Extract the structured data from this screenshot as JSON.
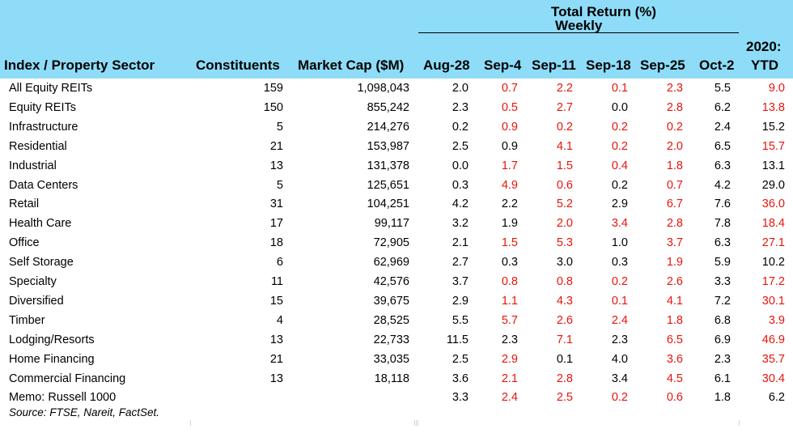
{
  "header": {
    "group_title": "Total Return (%)",
    "group_subtitle": "Weekly",
    "col_sector": "Index / Property Sector",
    "col_constituents": "Constituents",
    "col_marketcap": "Market Cap ($M)",
    "weeks": [
      "Aug-28",
      "Sep-4",
      "Sep-11",
      "Sep-18",
      "Sep-25",
      "Oct-2"
    ],
    "ytd_line1": "2020:",
    "ytd_line2": "YTD"
  },
  "colors": {
    "header_bg": "#8edcf8",
    "negative": "#e8140c",
    "text": "#000000"
  },
  "rows": [
    {
      "name": "All Equity REITs",
      "constituents": "159",
      "market_cap": "1,098,043",
      "returns": [
        "2.0",
        "0.7",
        "2.2",
        "0.1",
        "2.3",
        "5.5",
        "9.0"
      ],
      "red": [
        false,
        true,
        true,
        true,
        true,
        false,
        true
      ]
    },
    {
      "name": "Equity REITs",
      "constituents": "150",
      "market_cap": "855,242",
      "returns": [
        "2.3",
        "0.5",
        "2.7",
        "0.0",
        "2.8",
        "6.2",
        "13.8"
      ],
      "red": [
        false,
        true,
        true,
        false,
        true,
        false,
        true
      ]
    },
    {
      "name": "Infrastructure",
      "constituents": "5",
      "market_cap": "214,276",
      "returns": [
        "0.2",
        "0.9",
        "0.2",
        "0.2",
        "0.2",
        "2.4",
        "15.2"
      ],
      "red": [
        false,
        true,
        true,
        true,
        true,
        false,
        false
      ]
    },
    {
      "name": "Residential",
      "constituents": "21",
      "market_cap": "153,987",
      "returns": [
        "2.5",
        "0.9",
        "4.1",
        "0.2",
        "2.0",
        "6.5",
        "15.7"
      ],
      "red": [
        false,
        false,
        true,
        true,
        true,
        false,
        true
      ]
    },
    {
      "name": "Industrial",
      "constituents": "13",
      "market_cap": "131,378",
      "returns": [
        "0.0",
        "1.7",
        "1.5",
        "0.4",
        "1.8",
        "6.3",
        "13.1"
      ],
      "red": [
        false,
        true,
        true,
        true,
        true,
        false,
        false
      ]
    },
    {
      "name": "Data Centers",
      "constituents": "5",
      "market_cap": "125,651",
      "returns": [
        "0.3",
        "4.9",
        "0.6",
        "0.2",
        "0.7",
        "4.2",
        "29.0"
      ],
      "red": [
        false,
        true,
        true,
        false,
        true,
        false,
        false
      ]
    },
    {
      "name": "Retail",
      "constituents": "31",
      "market_cap": "104,251",
      "returns": [
        "4.2",
        "2.2",
        "5.2",
        "2.9",
        "6.7",
        "7.6",
        "36.0"
      ],
      "red": [
        false,
        false,
        true,
        false,
        true,
        false,
        true
      ]
    },
    {
      "name": "Health Care",
      "constituents": "17",
      "market_cap": "99,117",
      "returns": [
        "3.2",
        "1.9",
        "2.0",
        "3.4",
        "2.8",
        "7.8",
        "18.4"
      ],
      "red": [
        false,
        false,
        true,
        true,
        true,
        false,
        true
      ]
    },
    {
      "name": "Office",
      "constituents": "18",
      "market_cap": "72,905",
      "returns": [
        "2.1",
        "1.5",
        "5.3",
        "1.0",
        "3.7",
        "6.3",
        "27.1"
      ],
      "red": [
        false,
        true,
        true,
        false,
        true,
        false,
        true
      ]
    },
    {
      "name": "Self Storage",
      "constituents": "6",
      "market_cap": "62,969",
      "returns": [
        "2.7",
        "0.3",
        "3.0",
        "0.3",
        "1.9",
        "5.9",
        "10.2"
      ],
      "red": [
        false,
        false,
        false,
        false,
        true,
        false,
        false
      ]
    },
    {
      "name": "Specialty",
      "constituents": "11",
      "market_cap": "42,576",
      "returns": [
        "3.7",
        "0.8",
        "0.8",
        "0.2",
        "2.6",
        "3.3",
        "17.2"
      ],
      "red": [
        false,
        true,
        true,
        true,
        true,
        false,
        true
      ]
    },
    {
      "name": "Diversified",
      "constituents": "15",
      "market_cap": "39,675",
      "returns": [
        "2.9",
        "1.1",
        "4.3",
        "0.1",
        "4.1",
        "7.2",
        "30.1"
      ],
      "red": [
        false,
        true,
        true,
        true,
        true,
        false,
        true
      ]
    },
    {
      "name": "Timber",
      "constituents": "4",
      "market_cap": "28,525",
      "returns": [
        "5.5",
        "5.7",
        "2.6",
        "2.4",
        "1.8",
        "6.8",
        "3.9"
      ],
      "red": [
        false,
        true,
        true,
        true,
        true,
        false,
        true
      ]
    },
    {
      "name": "Lodging/Resorts",
      "constituents": "13",
      "market_cap": "22,733",
      "returns": [
        "11.5",
        "2.3",
        "7.1",
        "2.3",
        "6.5",
        "6.9",
        "46.9"
      ],
      "red": [
        false,
        false,
        true,
        false,
        true,
        false,
        true
      ]
    },
    {
      "name": "Home Financing",
      "constituents": "21",
      "market_cap": "33,035",
      "returns": [
        "2.5",
        "2.9",
        "0.1",
        "4.0",
        "3.6",
        "2.3",
        "35.7"
      ],
      "red": [
        false,
        true,
        false,
        false,
        true,
        false,
        true
      ]
    },
    {
      "name": "Commercial Financing",
      "constituents": "13",
      "market_cap": "18,118",
      "returns": [
        "3.6",
        "2.1",
        "2.8",
        "3.4",
        "4.5",
        "6.1",
        "30.4"
      ],
      "red": [
        false,
        true,
        true,
        false,
        true,
        false,
        true
      ]
    },
    {
      "name": "Memo: Russell 1000",
      "constituents": "",
      "market_cap": "",
      "returns": [
        "3.3",
        "2.4",
        "2.5",
        "0.2",
        "0.6",
        "1.8",
        "6.2"
      ],
      "red": [
        false,
        true,
        true,
        true,
        true,
        false,
        false
      ]
    }
  ],
  "source": "Source: FTSE, Nareit, FactSet."
}
